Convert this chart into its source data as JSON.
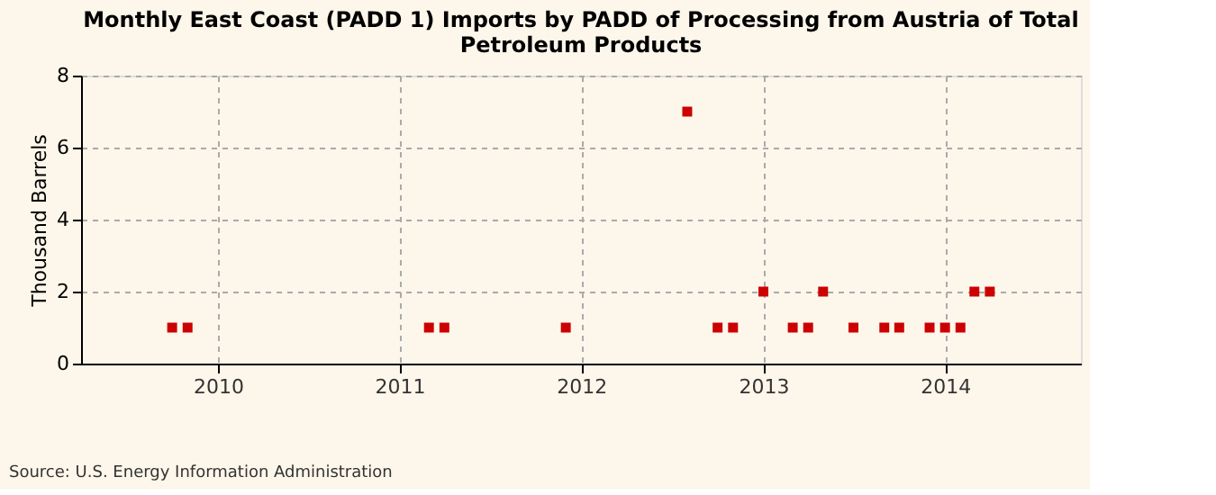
{
  "chart_data": {
    "type": "scatter",
    "title": "Monthly East Coast (PADD 1) Imports by PADD of Processing from Austria of Total Petroleum Products",
    "ylabel": "Thousand Barrels",
    "x": [
      "2009-10",
      "2009-11",
      "2011-03",
      "2011-04",
      "2011-12",
      "2012-08",
      "2012-10",
      "2012-11",
      "2013-01",
      "2013-03",
      "2013-04",
      "2013-05",
      "2013-07",
      "2013-09",
      "2013-10",
      "2013-12",
      "2014-01",
      "2014-02",
      "2014-03",
      "2014-04"
    ],
    "series": [
      {
        "color": "#cc0000",
        "values": [
          1,
          1,
          1,
          1,
          1,
          7,
          1,
          1,
          2,
          1,
          1,
          2,
          1,
          1,
          1,
          1,
          1,
          1,
          2,
          2
        ]
      }
    ],
    "xlim": [
      "2009-04",
      "2014-10"
    ],
    "xticks": [
      {
        "value": "2010",
        "label": "2010"
      },
      {
        "value": "2011",
        "label": "2011"
      },
      {
        "value": "2012",
        "label": "2012"
      },
      {
        "value": "2013",
        "label": "2013"
      },
      {
        "value": "2014",
        "label": "2014"
      }
    ],
    "ylim": [
      0,
      8
    ],
    "yticks": [
      0,
      2,
      4,
      6,
      8
    ],
    "grid": true,
    "marker": "square",
    "legend": false,
    "annotations": [
      "Source: U.S. Energy Information Administration"
    ]
  }
}
